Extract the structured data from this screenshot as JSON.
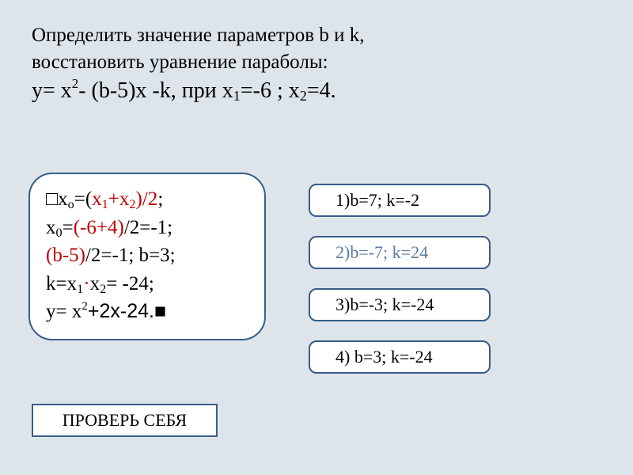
{
  "colors": {
    "page_bg": "#dee5ea",
    "box_bg": "#ffffff",
    "box_border": "#385d8a",
    "text": "#000000",
    "accent_red": "#c00000",
    "muted_blue": "#5a7ba6"
  },
  "problem": {
    "line1": "Определить значение параметров  b и k,",
    "line2": "восстановить уравнение параболы:",
    "equation_prefix": "y= x",
    "equation_exp": "2",
    "equation_mid": "- (b-5)x -k, при x",
    "equation_sub1": "1",
    "equation_eq1": "=-6 ; x",
    "equation_sub2": "2",
    "equation_eq2": "=4."
  },
  "solution": {
    "l1a": "□x",
    "l1b": "о",
    "l1c": "=(",
    "l1d": "x",
    "l1e": "1",
    "l1f": "+x",
    "l1g": "2",
    "l1h": ")/2",
    "l1i": ";",
    "l2a": "x",
    "l2b": "0",
    "l2c": "=",
    "l2d": "(-6+4)",
    "l2e": "/2=-1;",
    "l3a": "(b-5)",
    "l3b": "/2=-1; b=3;",
    "l4a": "k=x",
    "l4b": "1",
    "l4c": "·",
    "l4d": "x",
    "l4e": "2",
    "l4f": "= -24;",
    "l5a": "y= x",
    "l5b": "2",
    "l5c": "+2x-24.■"
  },
  "options": {
    "o1": "1)b=7; k=-2",
    "o2": "2)b=-7; k=24",
    "o3": "3)b=-3; k=-24",
    "o4": "4) b=3; k=-24"
  },
  "check_label": "ПРОВЕРЬ СЕБЯ"
}
